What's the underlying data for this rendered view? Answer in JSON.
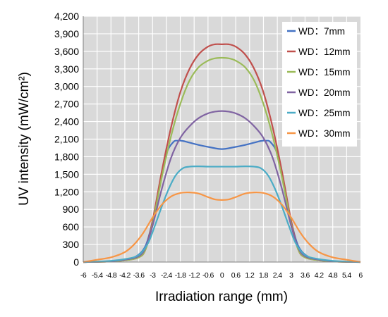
{
  "chart_data": {
    "type": "line",
    "xlabel": "Irradiation range (mm)",
    "ylabel": "UV intensity (mW/cm²)",
    "xlim": [
      -6,
      6
    ],
    "ylim": [
      0,
      4200
    ],
    "xticks": [
      "-6",
      "-5.4",
      "-4.8",
      "-4.2",
      "-3.6",
      "-3",
      "-2.4",
      "-1.8",
      "-1.2",
      "-0.6",
      "0",
      "0.6",
      "1.2",
      "1.8",
      "2.4",
      "3",
      "3.6",
      "4.2",
      "4.8",
      "5.4",
      "6"
    ],
    "xtick_values": [
      -6,
      -5.4,
      -4.8,
      -4.2,
      -3.6,
      -3,
      -2.4,
      -1.8,
      -1.2,
      -0.6,
      0,
      0.6,
      1.2,
      1.8,
      2.4,
      3,
      3.6,
      4.2,
      4.8,
      5.4,
      6
    ],
    "yticks": [
      "0",
      "300",
      "600",
      "900",
      "1,200",
      "1,500",
      "1,800",
      "2,100",
      "2,400",
      "2,700",
      "3,000",
      "3,300",
      "3,600",
      "3,900",
      "4,200"
    ],
    "ytick_values": [
      0,
      300,
      600,
      900,
      1200,
      1500,
      1800,
      2100,
      2400,
      2700,
      3000,
      3300,
      3600,
      3900,
      4200
    ],
    "grid": true,
    "legend_position": "top-right",
    "background": "#d9d9d9",
    "series": [
      {
        "name": "WD：7mm",
        "color": "#4472c4",
        "x": [
          -6,
          -5,
          -4.2,
          -3.7,
          -3.3,
          -3.0,
          -2.7,
          -2.4,
          -2.1,
          -1.9,
          -1.7,
          -1.4,
          -1.0,
          -0.5,
          0,
          0.5,
          1.0,
          1.4,
          1.7,
          1.9,
          2.1,
          2.4,
          2.7,
          3.0,
          3.3,
          3.7,
          4.2,
          5,
          6
        ],
        "y": [
          0,
          10,
          40,
          100,
          280,
          700,
          1300,
          1850,
          2050,
          2075,
          2070,
          2040,
          2000,
          1960,
          1930,
          1960,
          2000,
          2040,
          2070,
          2075,
          2050,
          1850,
          1300,
          700,
          280,
          100,
          40,
          10,
          0
        ]
      },
      {
        "name": "WD：12mm",
        "color": "#c0504d",
        "x": [
          -6,
          -5,
          -4.2,
          -3.6,
          -3.3,
          -3.0,
          -2.6,
          -2.2,
          -1.8,
          -1.4,
          -1.0,
          -0.6,
          -0.3,
          0,
          0.3,
          0.6,
          1.0,
          1.4,
          1.8,
          2.2,
          2.6,
          3.0,
          3.3,
          3.6,
          4.2,
          5,
          6
        ],
        "y": [
          0,
          8,
          30,
          80,
          220,
          700,
          1550,
          2300,
          2900,
          3300,
          3550,
          3680,
          3720,
          3720,
          3720,
          3680,
          3550,
          3300,
          2900,
          2300,
          1550,
          700,
          220,
          80,
          30,
          8,
          0
        ]
      },
      {
        "name": "WD：15mm",
        "color": "#9bbb59",
        "x": [
          -6,
          -5,
          -4.2,
          -3.6,
          -3.3,
          -3.0,
          -2.6,
          -2.2,
          -1.8,
          -1.4,
          -1.0,
          -0.6,
          -0.3,
          0,
          0.3,
          0.6,
          1.0,
          1.4,
          1.8,
          2.2,
          2.6,
          3.0,
          3.3,
          3.6,
          4.2,
          5,
          6
        ],
        "y": [
          0,
          8,
          30,
          80,
          220,
          650,
          1450,
          2150,
          2700,
          3100,
          3330,
          3440,
          3480,
          3490,
          3480,
          3440,
          3330,
          3100,
          2700,
          2150,
          1450,
          650,
          220,
          80,
          30,
          8,
          0
        ]
      },
      {
        "name": "WD：20mm",
        "color": "#8064a2",
        "x": [
          -6,
          -5,
          -4.2,
          -3.6,
          -3.3,
          -3.0,
          -2.6,
          -2.2,
          -1.8,
          -1.4,
          -1.0,
          -0.6,
          -0.3,
          0,
          0.3,
          0.6,
          1.0,
          1.4,
          1.8,
          2.2,
          2.6,
          3.0,
          3.3,
          3.6,
          4.2,
          5,
          6
        ],
        "y": [
          0,
          10,
          40,
          100,
          250,
          620,
          1250,
          1780,
          2120,
          2320,
          2460,
          2540,
          2570,
          2580,
          2570,
          2540,
          2460,
          2320,
          2120,
          1780,
          1250,
          620,
          250,
          100,
          40,
          10,
          0
        ]
      },
      {
        "name": "WD：25mm",
        "color": "#4bacc6",
        "x": [
          -6,
          -5,
          -4.2,
          -3.6,
          -3.2,
          -2.9,
          -2.6,
          -2.3,
          -2.0,
          -1.7,
          -1.4,
          -1.0,
          -0.5,
          0,
          0.5,
          1.0,
          1.4,
          1.7,
          2.0,
          2.3,
          2.6,
          2.9,
          3.2,
          3.6,
          4.2,
          5,
          6
        ],
        "y": [
          0,
          15,
          50,
          120,
          320,
          620,
          950,
          1250,
          1480,
          1600,
          1630,
          1635,
          1630,
          1630,
          1630,
          1635,
          1630,
          1600,
          1480,
          1250,
          950,
          620,
          320,
          120,
          50,
          15,
          0
        ]
      },
      {
        "name": "WD：30mm",
        "color": "#f79646",
        "x": [
          -6,
          -5.4,
          -4.8,
          -4.2,
          -3.8,
          -3.4,
          -3.0,
          -2.6,
          -2.2,
          -1.8,
          -1.4,
          -1.0,
          -0.6,
          -0.3,
          0,
          0.3,
          0.6,
          1.0,
          1.4,
          1.8,
          2.2,
          2.6,
          3.0,
          3.4,
          3.8,
          4.2,
          4.8,
          5.4,
          6
        ],
        "y": [
          0,
          40,
          80,
          170,
          300,
          500,
          760,
          980,
          1120,
          1180,
          1190,
          1170,
          1110,
          1070,
          1060,
          1070,
          1110,
          1170,
          1190,
          1180,
          1120,
          980,
          760,
          500,
          300,
          170,
          80,
          40,
          0
        ]
      }
    ]
  }
}
